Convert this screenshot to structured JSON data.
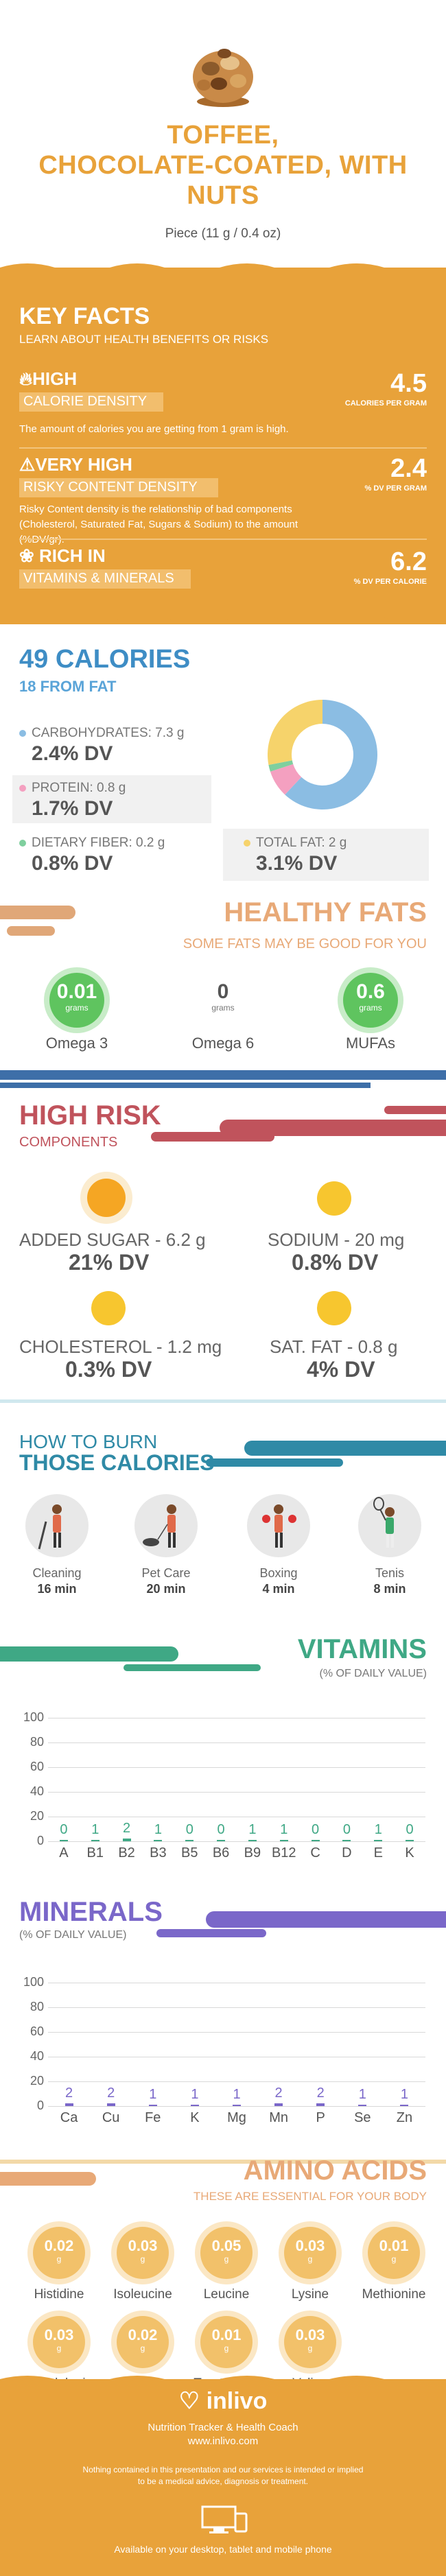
{
  "header": {
    "title_lines": [
      "TOFFEE,",
      "CHOCOLATE-COATED, WITH",
      "NUTS"
    ],
    "serving": "Piece (11 g / 0.4 oz)"
  },
  "key_facts": {
    "title": "KEY FACTS",
    "subtitle": "LEARN ABOUT HEALTH BENEFITS OR RISKS",
    "facts": [
      {
        "level": "HIGH",
        "name": "CALORIE DENSITY",
        "desc": "The amount of calories you are getting from 1 gram is high.",
        "value": "4.5",
        "unit": "CALORIES PER GRAM"
      },
      {
        "level": "VERY HIGH",
        "name": "RISKY CONTENT DENSITY",
        "desc": "Risky Content density is the relationship of bad components (Cholesterol, Saturated Fat, Sugars & Sodium) to the amount (%DV/gr).",
        "value": "2.4",
        "unit": "% DV PER GRAM"
      },
      {
        "level": "RICH IN",
        "name": "VITAMINS & MINERALS",
        "desc": "",
        "value": "6.2",
        "unit": "% DV PER CALORIE"
      }
    ]
  },
  "calories": {
    "title": "49 CALORIES",
    "subtitle": "18 FROM FAT",
    "items": [
      {
        "label": "CARBOHYDRATES: 7.3 g",
        "dv": "2.4% DV",
        "color": "#8bbde3"
      },
      {
        "label": "PROTEIN: 0.8 g",
        "dv": "1.7% DV",
        "color": "#f4a0c0"
      },
      {
        "label": "DIETARY FIBER: 0.2 g",
        "dv": "0.8% DV",
        "color": "#7fcf9e"
      },
      {
        "label": "TOTAL FAT: 2 g",
        "dv": "3.1% DV",
        "color": "#f6d36b"
      }
    ]
  },
  "chart_data": [
    {
      "type": "pie",
      "categories": [
        "Carbohydrates",
        "Protein",
        "Dietary Fiber",
        "Total Fat"
      ],
      "values": [
        62,
        8,
        2,
        28
      ],
      "colors": [
        "#8bbde3",
        "#f4a0c0",
        "#7fcf9e",
        "#f6d36b"
      ]
    },
    {
      "type": "bar",
      "title": "VITAMINS",
      "subtitle": "(% OF DAILY VALUE)",
      "categories": [
        "A",
        "B1",
        "B2",
        "B3",
        "B5",
        "B6",
        "B9",
        "B12",
        "C",
        "D",
        "E",
        "K"
      ],
      "values": [
        0,
        1,
        2,
        1,
        0,
        0,
        1,
        1,
        0,
        0,
        1,
        0
      ],
      "ylim": [
        0,
        100
      ],
      "yticks": [
        "100",
        "80",
        "60",
        "40",
        "20",
        "0"
      ],
      "color": "#3fa885"
    },
    {
      "type": "bar",
      "title": "MINERALS",
      "subtitle": "(% OF DAILY VALUE)",
      "categories": [
        "Ca",
        "Cu",
        "Fe",
        "K",
        "Mg",
        "Mn",
        "P",
        "Se",
        "Zn"
      ],
      "values": [
        2,
        2,
        1,
        1,
        1,
        2,
        2,
        1,
        1
      ],
      "ylim": [
        0,
        100
      ],
      "yticks": [
        "100",
        "80",
        "60",
        "40",
        "20",
        "0"
      ],
      "color": "#7a67c9"
    }
  ],
  "healthy_fats": {
    "title": "HEALTHY FATS",
    "subtitle": "SOME FATS MAY BE GOOD FOR YOU",
    "items": [
      {
        "value": "0.01",
        "unit": "grams",
        "label": "Omega 3"
      },
      {
        "value": "0",
        "unit": "grams",
        "label": "Omega 6"
      },
      {
        "value": "0.6",
        "unit": "grams",
        "label": "MUFAs"
      }
    ]
  },
  "high_risk": {
    "title": "HIGH RISK",
    "subtitle": "COMPONENTS",
    "items": [
      {
        "label": "ADDED SUGAR - 6.2 g",
        "dv": "21% DV"
      },
      {
        "label": "SODIUM - 20 mg",
        "dv": "0.8% DV"
      },
      {
        "label": "CHOLESTEROL - 1.2 mg",
        "dv": "0.3% DV"
      },
      {
        "label": "SAT. FAT - 0.8 g",
        "dv": "4% DV"
      }
    ]
  },
  "burn": {
    "title1": "HOW TO BURN",
    "title2": "THOSE CALORIES",
    "items": [
      {
        "label": "Cleaning",
        "time": "16 min"
      },
      {
        "label": "Pet Care",
        "time": "20 min"
      },
      {
        "label": "Boxing",
        "time": "4 min"
      },
      {
        "label": "Tenis",
        "time": "8 min"
      }
    ]
  },
  "vitamins_labels": {
    "values_text": [
      "0",
      "1",
      "2",
      "1",
      "0",
      "0",
      "1",
      "1",
      "0",
      "0",
      "1",
      "0"
    ]
  },
  "minerals_labels": {
    "values_text": [
      "2",
      "2",
      "1",
      "1",
      "1",
      "2",
      "2",
      "1",
      "1"
    ]
  },
  "amino": {
    "title": "AMINO ACIDS",
    "subtitle": "THESE ARE ESSENTIAL FOR YOUR BODY",
    "unit": "g",
    "items": [
      {
        "value": "0.02",
        "label": "Histidine"
      },
      {
        "value": "0.03",
        "label": "Isoleucine"
      },
      {
        "value": "0.05",
        "label": "Leucine"
      },
      {
        "value": "0.03",
        "label": "Lysine"
      },
      {
        "value": "0.01",
        "label": "Methionine"
      },
      {
        "value": "0.03",
        "label": "Phenylalanine"
      },
      {
        "value": "0.02",
        "label": "Threonine"
      },
      {
        "value": "0.01",
        "label": "Tryptophan"
      },
      {
        "value": "0.03",
        "label": "Valine"
      }
    ]
  },
  "footer": {
    "brand": "inlivo",
    "tagline": "Nutrition Tracker & Health Coach",
    "url": "www.inlivo.com",
    "disclaimer1": "Nothing contained in this presentation and our services is intended or implied",
    "disclaimer2": "to be a medical advice, diagnosis or treatment.",
    "available": "Available on your desktop, tablet and mobile phone"
  }
}
